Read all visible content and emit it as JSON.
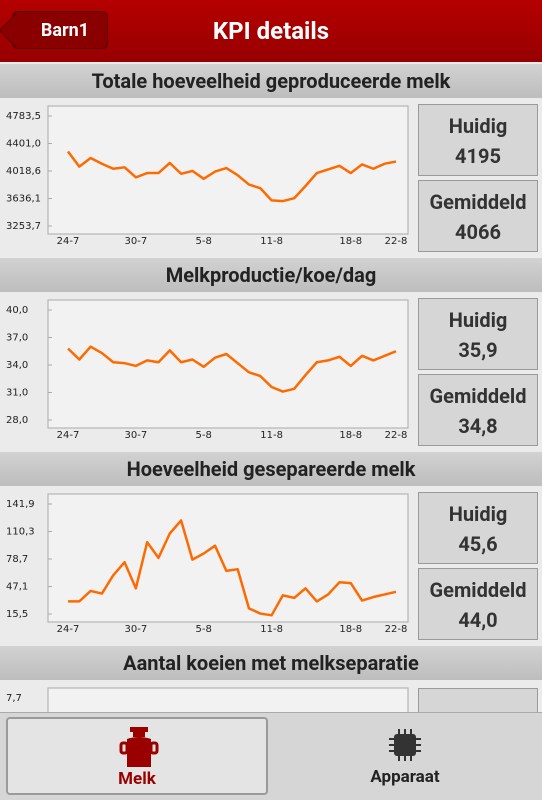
{
  "header": {
    "back": "Barn1",
    "title": "KPI details"
  },
  "sections": [
    {
      "title": "Totale hoeveelheid geproduceerde melk",
      "chart": {
        "type": "line",
        "color": "#ff6a00",
        "categories": [
          "24-7",
          null,
          null,
          null,
          null,
          null,
          "30-7",
          null,
          null,
          null,
          null,
          null,
          "5-8",
          null,
          null,
          null,
          null,
          null,
          "11-8",
          null,
          null,
          null,
          null,
          null,
          null,
          "18-8",
          null,
          null,
          null,
          "22-8"
        ],
        "values": [
          4290,
          4080,
          4200,
          4120,
          4050,
          4070,
          3930,
          3990,
          3990,
          4130,
          3980,
          4020,
          3910,
          4010,
          4060,
          3960,
          3830,
          3780,
          3610,
          3600,
          3640,
          3810,
          3990,
          4040,
          4090,
          3990,
          4110,
          4050,
          4120,
          4150
        ],
        "ylim": [
          3253.7,
          4783.5
        ],
        "yticks": [
          {
            "value": 3253.7,
            "label": "3253,7"
          },
          {
            "value": 3636.1,
            "label": "3636,1"
          },
          {
            "value": 4018.6,
            "label": "4018,6"
          },
          {
            "value": 4401.0,
            "label": "4401,0"
          },
          {
            "value": 4783.5,
            "label": "4783,5"
          }
        ]
      },
      "stats": [
        {
          "label": "Huidig",
          "value": "4195"
        },
        {
          "label": "Gemiddeld",
          "value": "4066"
        }
      ]
    },
    {
      "title": "Melkproductie/koe/dag",
      "chart": {
        "type": "line",
        "color": "#ff6a00",
        "categories": [
          "24-7",
          null,
          null,
          null,
          null,
          null,
          "30-7",
          null,
          null,
          null,
          null,
          null,
          "5-8",
          null,
          null,
          null,
          null,
          null,
          "11-8",
          null,
          null,
          null,
          null,
          null,
          null,
          "18-8",
          null,
          null,
          null,
          "22-8"
        ],
        "values": [
          35.8,
          34.6,
          36.0,
          35.3,
          34.3,
          34.2,
          33.9,
          34.5,
          34.3,
          35.6,
          34.3,
          34.6,
          33.8,
          34.8,
          35.2,
          34.2,
          33.2,
          32.8,
          31.6,
          31.1,
          31.4,
          32.9,
          34.3,
          34.5,
          34.9,
          33.9,
          35.0,
          34.5,
          35.0,
          35.5
        ],
        "ylim": [
          28.0,
          40.0
        ],
        "yticks": [
          {
            "value": 28,
            "label": "28,0"
          },
          {
            "value": 31,
            "label": "31,0"
          },
          {
            "value": 34,
            "label": "34,0"
          },
          {
            "value": 37,
            "label": "37,0"
          },
          {
            "value": 40,
            "label": "40,0"
          }
        ]
      },
      "stats": [
        {
          "label": "Huidig",
          "value": "35,9"
        },
        {
          "label": "Gemiddeld",
          "value": "34,8"
        }
      ]
    },
    {
      "title": "Hoeveelheid gesepareerde melk",
      "chart": {
        "type": "line",
        "color": "#ff6a00",
        "categories": [
          "24-7",
          null,
          null,
          null,
          null,
          null,
          "30-7",
          null,
          null,
          null,
          null,
          null,
          "5-8",
          null,
          null,
          null,
          null,
          null,
          "11-8",
          null,
          null,
          null,
          null,
          null,
          null,
          "18-8",
          null,
          null,
          null,
          "22-8"
        ],
        "values": [
          30,
          30,
          42,
          39,
          60,
          75,
          45,
          98,
          80,
          108,
          123,
          78,
          85,
          94,
          65,
          67,
          22,
          16,
          14,
          37,
          34,
          45,
          30,
          38,
          52,
          51,
          31,
          35,
          38,
          41
        ],
        "ylim": [
          15.5,
          141.9
        ],
        "yticks": [
          {
            "value": 15.5,
            "label": "15,5"
          },
          {
            "value": 47.1,
            "label": "47,1"
          },
          {
            "value": 78.7,
            "label": "78,7"
          },
          {
            "value": 110.3,
            "label": "110,3"
          },
          {
            "value": 141.9,
            "label": "141,9"
          }
        ]
      },
      "stats": [
        {
          "label": "Huidig",
          "value": "45,6"
        },
        {
          "label": "Gemiddeld",
          "value": "44,0"
        }
      ]
    },
    {
      "title": "Aantal koeien met melkseparatie",
      "partial_tick": "7,7"
    }
  ],
  "tabs": [
    "Melk",
    "Apparaat"
  ]
}
